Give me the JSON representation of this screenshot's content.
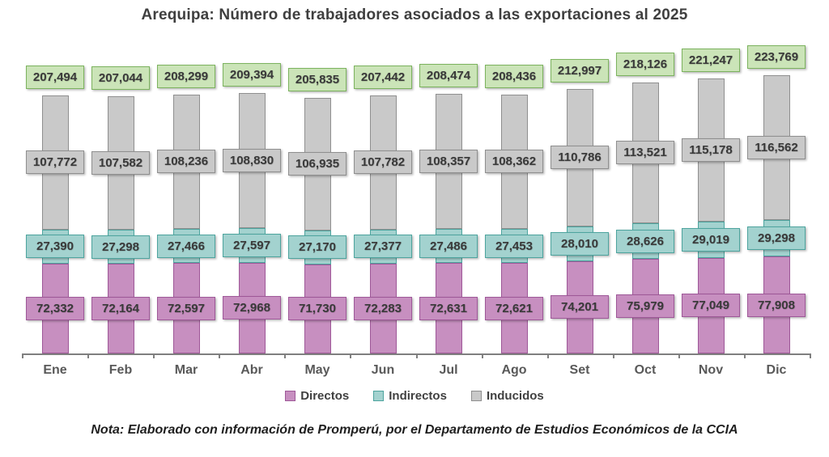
{
  "chart_data": {
    "type": "bar",
    "stacked": true,
    "title": "Arequipa: Número de trabajadores asociados a las exportaciones al 2025",
    "categories": [
      "Ene",
      "Feb",
      "Mar",
      "Abr",
      "May",
      "Jun",
      "Jul",
      "Ago",
      "Set",
      "Oct",
      "Nov",
      "Dic"
    ],
    "series": [
      {
        "name": "Directos",
        "fill": "#c78fc0",
        "border": "#9e5898",
        "values": [
          72332,
          72164,
          72597,
          72968,
          71730,
          72283,
          72631,
          72621,
          74201,
          75979,
          77049,
          77908
        ]
      },
      {
        "name": "Indirectos",
        "fill": "#a3d2cf",
        "border": "#4da49e",
        "values": [
          27390,
          27298,
          27466,
          27597,
          27170,
          27377,
          27486,
          27453,
          28010,
          28626,
          29019,
          29298
        ]
      },
      {
        "name": "Inducidos",
        "fill": "#c9c9c9",
        "border": "#8f8f8f",
        "values": [
          107772,
          107582,
          108236,
          108830,
          106935,
          107782,
          108357,
          108362,
          110786,
          113521,
          115178,
          116562
        ]
      }
    ],
    "totals": [
      207494,
      207044,
      208299,
      209394,
      205835,
      207442,
      208474,
      208436,
      212997,
      218126,
      221247,
      223769
    ],
    "total_label_fill": "#cbe4b8",
    "total_label_border": "#7cb35e",
    "axis_color": "#7f7f7f",
    "legend_position": "bottom",
    "ylim": [
      0,
      245000
    ],
    "grid": false,
    "note": "Nota: Elaborado con información de Promperú, por el Departamento de Estudios Económicos de la CCIA"
  }
}
